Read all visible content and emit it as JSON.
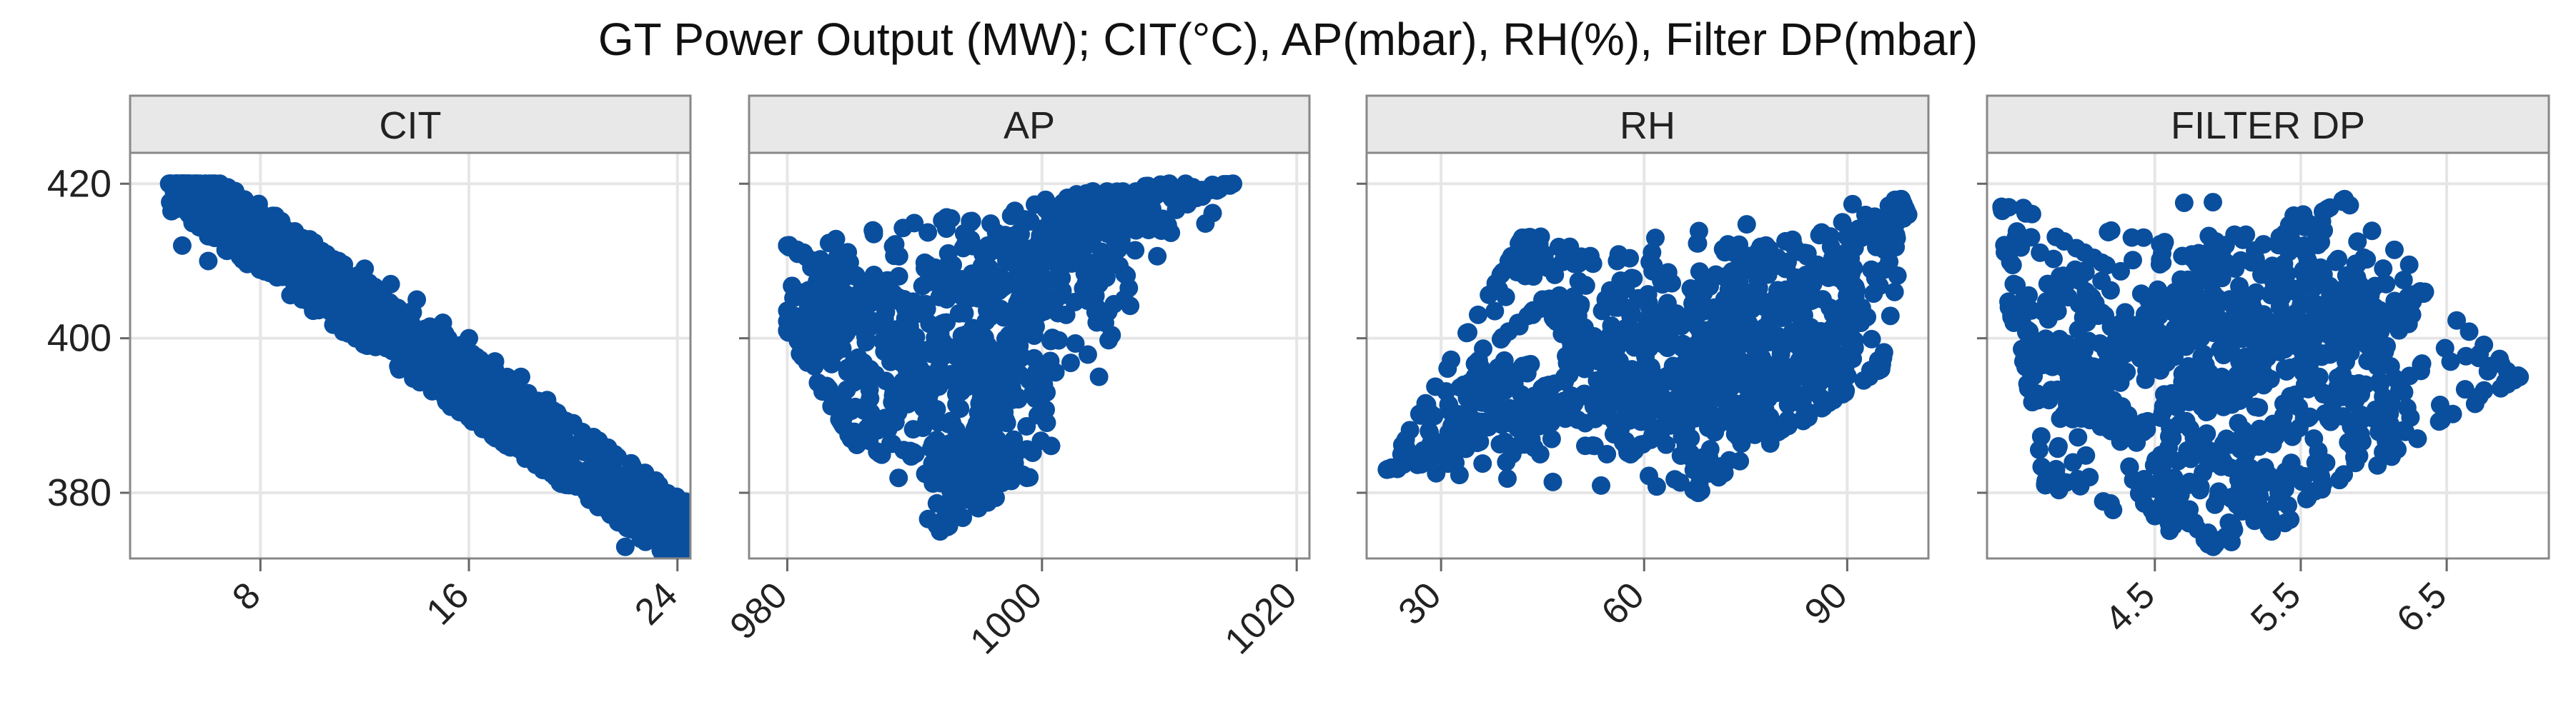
{
  "title": "GT Power Output (MW);  CIT(°C), AP(mbar), RH(%), Filter DP(mbar)",
  "colors": {
    "point": "#0a4f9e",
    "strip_bg": "#e8e8e8",
    "grid": "#e6e6e6",
    "frame": "#888888"
  },
  "y_ticks": [
    420,
    400,
    380
  ],
  "chart_data": [
    {
      "type": "scatter",
      "panel": "CIT",
      "xlim": [
        3,
        24.5
      ],
      "ylim": [
        371.5,
        424
      ],
      "x_ticks": [
        8,
        16,
        24
      ],
      "y_ticks": [
        380,
        400,
        420
      ],
      "grid": true,
      "points": [
        [
          4.5,
          420
        ],
        [
          5.5,
          419
        ],
        [
          6,
          418
        ],
        [
          7,
          417
        ],
        [
          8,
          415
        ],
        [
          9,
          414
        ],
        [
          10,
          412
        ],
        [
          11,
          410
        ],
        [
          12,
          409
        ],
        [
          13,
          407
        ],
        [
          14,
          405
        ],
        [
          15,
          402
        ],
        [
          16,
          400
        ],
        [
          17,
          397
        ],
        [
          18,
          395
        ],
        [
          19,
          392
        ],
        [
          20,
          389
        ],
        [
          21,
          386
        ],
        [
          22,
          382
        ],
        [
          23,
          379
        ],
        [
          24,
          375
        ],
        [
          5,
          412
        ],
        [
          6,
          410
        ],
        [
          23.5,
          374
        ],
        [
          22,
          373
        ]
      ]
    },
    {
      "type": "scatter",
      "panel": "AP",
      "xlim": [
        977,
        1021
      ],
      "ylim": [
        371.5,
        424
      ],
      "x_ticks": [
        980,
        1000,
        1020
      ],
      "y_ticks": [
        380,
        400,
        420
      ],
      "grid": true,
      "points": [
        [
          980,
          412
        ],
        [
          980,
          401
        ],
        [
          981,
          398
        ],
        [
          982,
          410
        ],
        [
          984,
          392
        ],
        [
          985,
          387
        ],
        [
          987,
          407
        ],
        [
          988,
          400
        ],
        [
          990,
          404
        ],
        [
          991,
          393
        ],
        [
          992,
          375
        ],
        [
          993,
          380
        ],
        [
          995,
          385
        ],
        [
          996,
          393
        ],
        [
          997,
          398
        ],
        [
          998,
          404
        ],
        [
          999,
          409
        ],
        [
          1000,
          414
        ],
        [
          1002,
          418
        ],
        [
          1004,
          419
        ],
        [
          1006,
          418
        ],
        [
          1008,
          419
        ],
        [
          1010,
          420
        ],
        [
          1012,
          419
        ],
        [
          1015,
          420
        ],
        [
          997,
          390
        ],
        [
          999,
          382
        ],
        [
          995,
          378
        ]
      ]
    },
    {
      "type": "scatter",
      "panel": "RH",
      "xlim": [
        19,
        102
      ],
      "ylim": [
        371.5,
        424
      ],
      "x_ticks": [
        30,
        60,
        90
      ],
      "y_ticks": [
        380,
        400,
        420
      ],
      "grid": true,
      "points": [
        [
          22,
          383
        ],
        [
          27,
          390
        ],
        [
          30,
          385
        ],
        [
          35,
          395
        ],
        [
          38,
          389
        ],
        [
          40,
          410
        ],
        [
          42,
          413
        ],
        [
          45,
          405
        ],
        [
          50,
          398
        ],
        [
          55,
          392
        ],
        [
          58,
          385
        ],
        [
          60,
          395
        ],
        [
          63,
          402
        ],
        [
          65,
          390
        ],
        [
          68,
          380
        ],
        [
          70,
          395
        ],
        [
          72,
          408
        ],
        [
          75,
          400
        ],
        [
          78,
          412
        ],
        [
          80,
          388
        ],
        [
          83,
          395
        ],
        [
          85,
          405
        ],
        [
          88,
          392
        ],
        [
          90,
          410
        ],
        [
          92,
          402
        ],
        [
          95,
          396
        ],
        [
          98,
          418
        ],
        [
          99,
          416
        ]
      ]
    },
    {
      "type": "scatter",
      "panel": "FILTER DP",
      "xlim": [
        3.35,
        7.2
      ],
      "ylim": [
        371.5,
        424
      ],
      "x_ticks": [
        4.5,
        5.5,
        6.5
      ],
      "y_ticks": [
        380,
        400,
        420
      ],
      "grid": true,
      "points": [
        [
          3.45,
          417
        ],
        [
          3.5,
          404
        ],
        [
          3.6,
          397
        ],
        [
          3.7,
          392
        ],
        [
          3.75,
          381
        ],
        [
          3.85,
          408
        ],
        [
          4,
          395
        ],
        [
          4.2,
          388
        ],
        [
          4.4,
          399
        ],
        [
          4.5,
          377
        ],
        [
          4.6,
          405
        ],
        [
          4.8,
          411
        ],
        [
          5,
          392
        ],
        [
          5.2,
          401
        ],
        [
          5.35,
          380
        ],
        [
          5.5,
          415
        ],
        [
          5.65,
          398
        ],
        [
          5.8,
          418
        ],
        [
          5.9,
          407
        ],
        [
          6,
          404
        ],
        [
          6.1,
          389
        ],
        [
          6.2,
          402
        ],
        [
          6.3,
          387
        ],
        [
          6.35,
          406
        ],
        [
          7.0,
          395
        ],
        [
          5.3,
          375
        ],
        [
          4.9,
          373
        ]
      ]
    }
  ]
}
